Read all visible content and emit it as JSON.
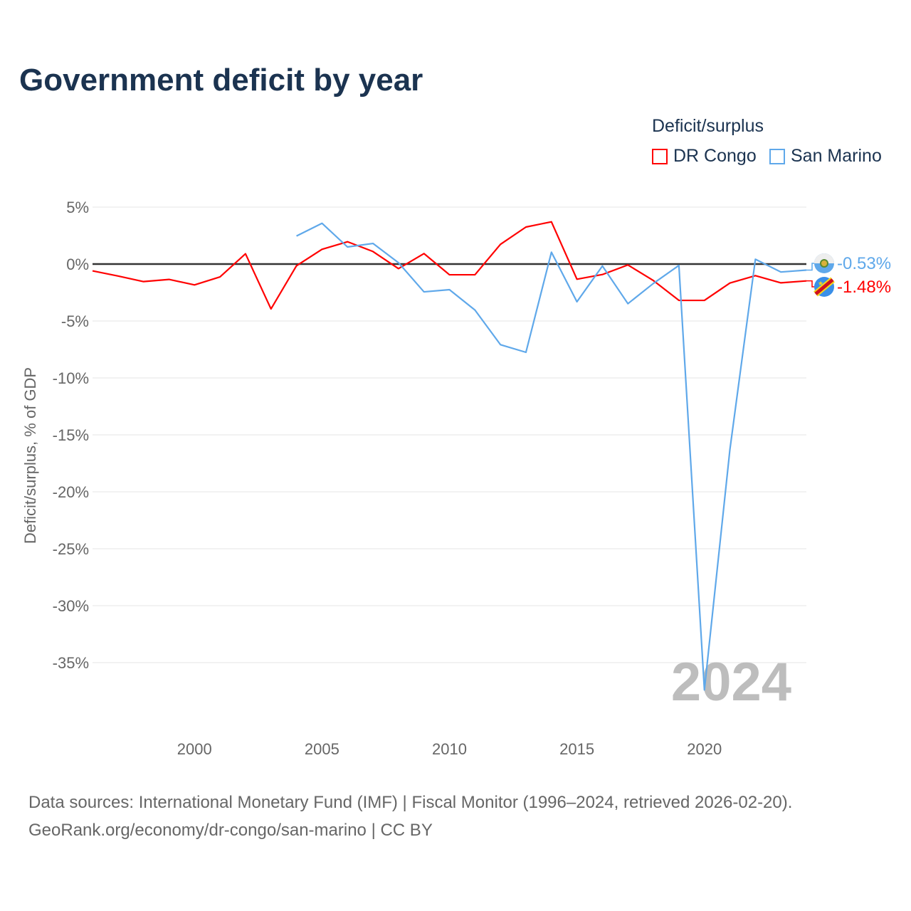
{
  "title": "Government deficit by year",
  "legend": {
    "title": "Deficit/surplus",
    "items": [
      {
        "label": "DR Congo",
        "color": "#ff0000"
      },
      {
        "label": "San Marino",
        "color": "#5fa8ea"
      }
    ]
  },
  "source": {
    "line1": "Data sources: International Monetary Fund (IMF) | Fiscal Monitor (1996–2024, retrieved 2026-02-20).",
    "line2": "GeoRank.org/economy/dr-congo/san-marino | CC BY"
  },
  "chart_data": {
    "type": "line",
    "title": "Government deficit by year",
    "xlabel": "",
    "ylabel": "Deficit/surplus, % of GDP",
    "xlim": [
      1996,
      2024
    ],
    "ylim": [
      -40,
      5
    ],
    "x_ticks": [
      2000,
      2005,
      2010,
      2015,
      2020
    ],
    "x_tick_labels": [
      "2000",
      "2005",
      "2010",
      "2015",
      "2020"
    ],
    "y_ticks": [
      5,
      0,
      -5,
      -10,
      -15,
      -20,
      -25,
      -30,
      -35
    ],
    "y_tick_labels": [
      "5%",
      "0%",
      "-5%",
      "-10%",
      "-15%",
      "-20%",
      "-25%",
      "-30%",
      "-35%"
    ],
    "grid": true,
    "legend_position": "top-right",
    "year_watermark": "2024",
    "series": [
      {
        "name": "DR Congo",
        "color": "#ff0000",
        "end_label": "-1.48%",
        "x": [
          1996,
          1997,
          1998,
          1999,
          2000,
          2001,
          2002,
          2003,
          2004,
          2005,
          2006,
          2007,
          2008,
          2009,
          2010,
          2011,
          2012,
          2013,
          2014,
          2015,
          2016,
          2017,
          2018,
          2019,
          2020,
          2021,
          2022,
          2023,
          2024
        ],
        "values": [
          -0.6,
          -1.05,
          -1.54,
          -1.35,
          -1.83,
          -1.13,
          0.9,
          -3.94,
          -0.15,
          1.29,
          1.96,
          1.1,
          -0.4,
          0.92,
          -0.94,
          -0.94,
          1.73,
          3.25,
          3.71,
          -1.33,
          -0.92,
          -0.08,
          -1.45,
          -3.19,
          -3.19,
          -1.67,
          -1.02,
          -1.65,
          -1.48
        ]
      },
      {
        "name": "San Marino",
        "color": "#5fa8ea",
        "end_label": "-0.53%",
        "x": [
          2004,
          2005,
          2006,
          2007,
          2008,
          2009,
          2010,
          2011,
          2012,
          2013,
          2014,
          2015,
          2016,
          2017,
          2018,
          2019,
          2020,
          2021,
          2022,
          2023,
          2024
        ],
        "values": [
          2.46,
          3.58,
          1.5,
          1.81,
          0.12,
          -2.44,
          -2.25,
          -4.04,
          -7.08,
          -7.75,
          1.04,
          -3.31,
          -0.17,
          -3.48,
          -1.7,
          -0.12,
          -37.4,
          -16.3,
          0.42,
          -0.7,
          -0.53
        ]
      }
    ]
  }
}
